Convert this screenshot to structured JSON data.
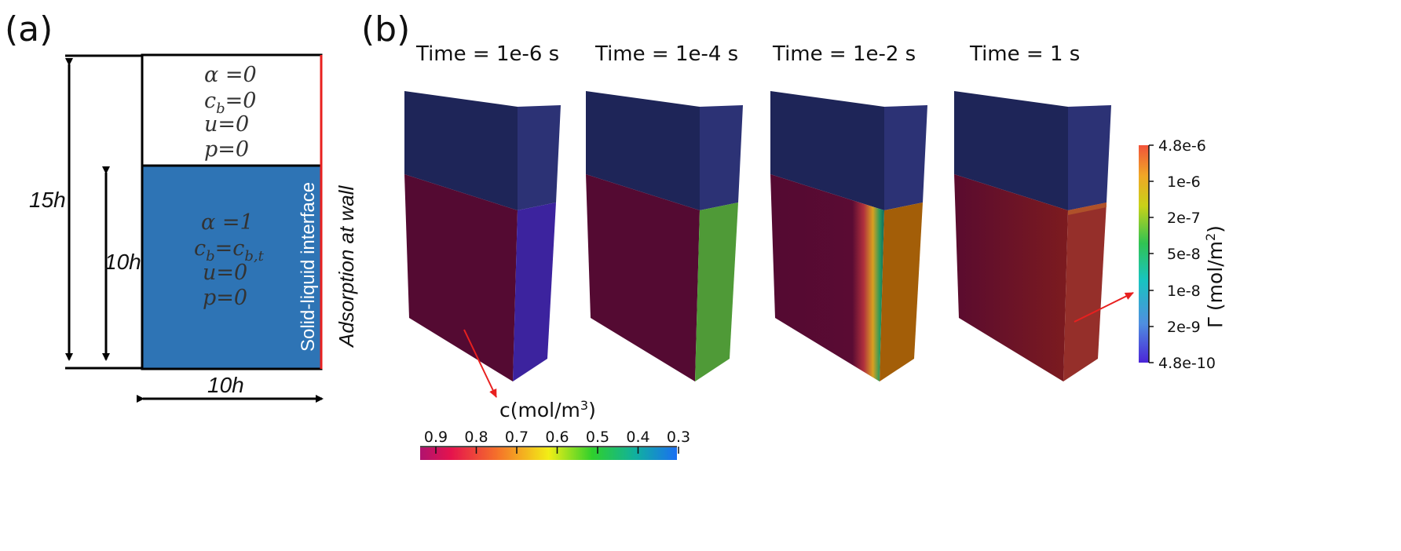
{
  "panel_a": {
    "label": "(a)",
    "upper_region": {
      "eq1": "α =0",
      "eq2_base": "c",
      "eq2_sub": "b",
      "eq2_rest": "=0",
      "eq3": "u=0",
      "eq4": "p=0"
    },
    "lower_region": {
      "eq1": "α =1",
      "eq2_base": "c",
      "eq2_sub": "b",
      "eq2_mid": "=c",
      "eq2_sub2": "b,t",
      "eq3": "u=0",
      "eq4": "p=0"
    },
    "dim_height_total": "15h",
    "dim_height_liquid": "10h",
    "dim_width": "10h",
    "interface_label": "Solid-liquid interface",
    "wall_label": "Adsorption at wall",
    "colors": {
      "liquid": "#2e74b5",
      "wall": "#e8201f"
    }
  },
  "panel_b": {
    "label": "(b)",
    "snapshots": [
      {
        "time_label": "Time = 1e-6 s"
      },
      {
        "time_label": "Time = 1e-4 s"
      },
      {
        "time_label": "Time = 1e-2 s"
      },
      {
        "time_label": "Time = 1 s"
      }
    ],
    "colorbar_c": {
      "title_base": "c(mol/m",
      "title_sup": "3",
      "title_end": ")",
      "ticks": [
        "0.9",
        "0.8",
        "0.7",
        "0.6",
        "0.5",
        "0.4",
        "0.3"
      ]
    },
    "colorbar_gamma": {
      "title_base": "Γ (mol/m",
      "title_sup": "2",
      "title_end": ")",
      "ticks": [
        "4.8e-6",
        "1e-6",
        "2e-7",
        "5e-8",
        "1e-8",
        "2e-9",
        "4.8e-10"
      ]
    },
    "colors": {
      "gas_top": "#2c3275",
      "gas_front": "#1e2558",
      "liquid_front": "#540a32",
      "arrow": "#e8201f"
    }
  }
}
